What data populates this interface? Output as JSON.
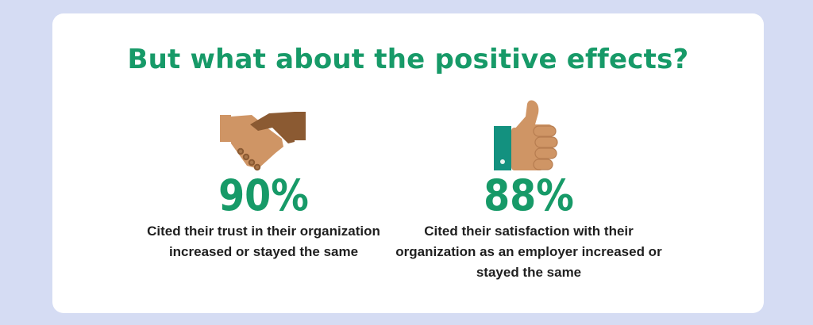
{
  "title": "But what about the positive effects?",
  "stats": [
    {
      "icon": "handshake-icon",
      "value": "90%",
      "caption": "Cited their trust in their organization increased or stayed the same"
    },
    {
      "icon": "thumbs-up-icon",
      "value": "88%",
      "caption": "Cited their satisfaction with their organization as an employer increased or stayed the same"
    }
  ],
  "colors": {
    "background": "#d5dcf3",
    "card": "#ffffff",
    "accent": "#179a68",
    "text": "#1f1f1f",
    "skin_light": "#cf9565",
    "skin_dark": "#8b5a32",
    "sleeve": "#13917f"
  }
}
